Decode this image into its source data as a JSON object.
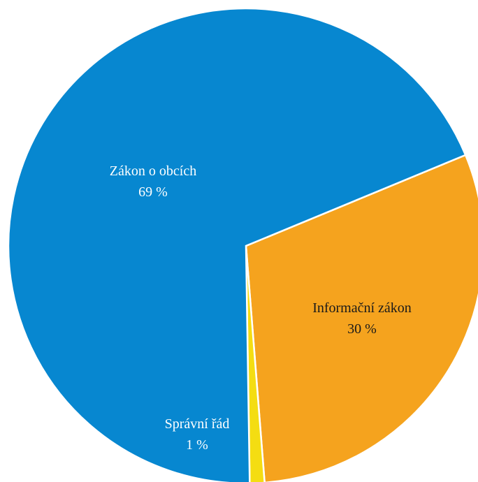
{
  "chart_data": {
    "type": "pie",
    "title": "",
    "slices": [
      {
        "label": "Informační zákon",
        "value": 30,
        "value_label": "30 %",
        "color": "#f5a31e",
        "text_color": "#1a1a1a"
      },
      {
        "label": "Správní řád",
        "value": 1,
        "value_label": "1 %",
        "color": "#f4dd12",
        "text_color": "#ffffff"
      },
      {
        "label": "Zákon o obcích",
        "value": 69,
        "value_label": "69 %",
        "color": "#0787d0",
        "text_color": "#ffffff"
      }
    ],
    "start_angle_deg": 67.5,
    "direction": "clockwise",
    "legend": "none"
  }
}
